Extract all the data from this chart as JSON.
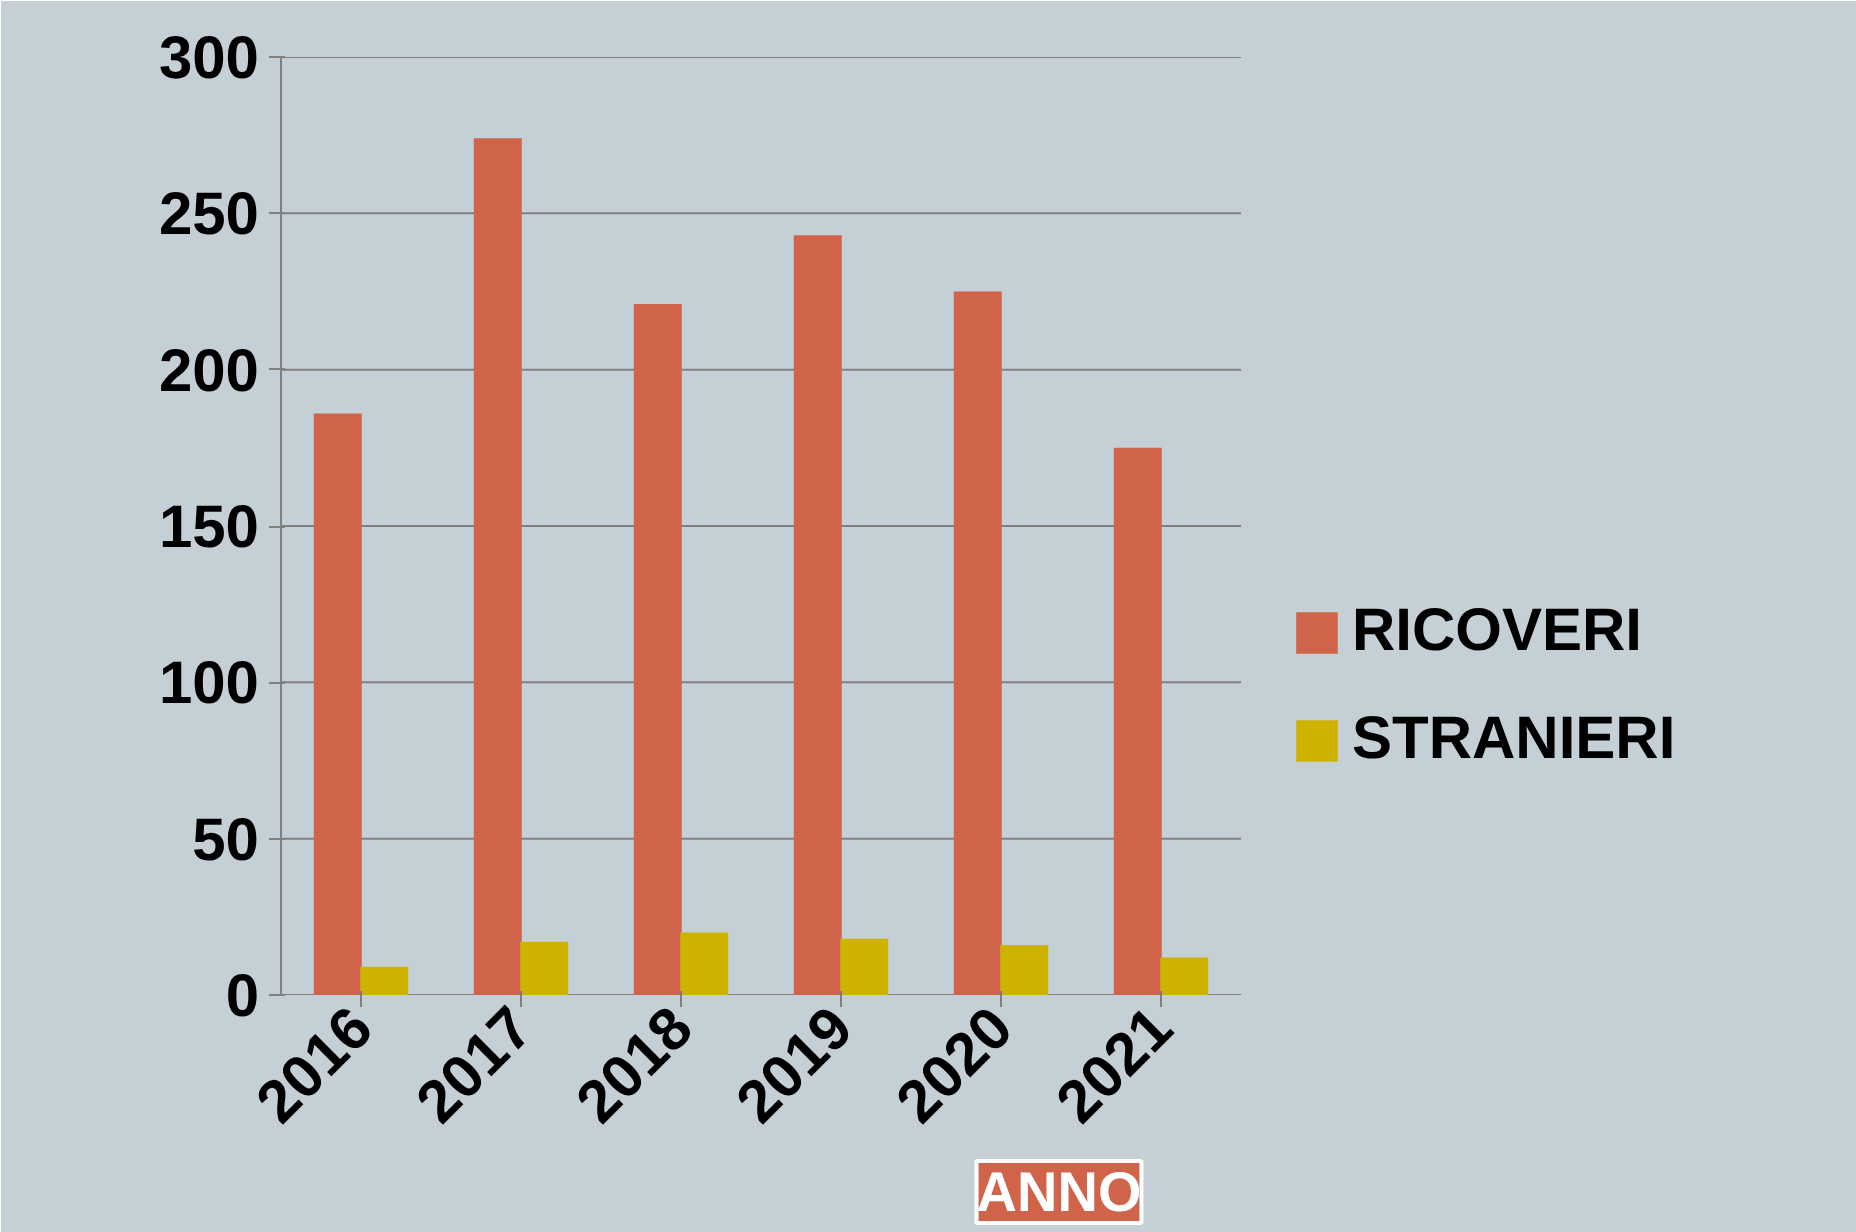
{
  "chart_data": {
    "type": "bar",
    "categories": [
      "2016",
      "2017",
      "2018",
      "2019",
      "2020",
      "2021"
    ],
    "series": [
      {
        "name": "RICOVERI",
        "color": "#d0644a",
        "values": [
          186,
          274,
          221,
          243,
          225,
          175
        ]
      },
      {
        "name": "STRANIERI",
        "color": "#cdb300",
        "values": [
          9,
          17,
          20,
          18,
          16,
          12
        ]
      }
    ],
    "ylim": [
      0,
      300
    ],
    "yticks": [
      0,
      50,
      100,
      150,
      200,
      250,
      300
    ],
    "grid": "y",
    "legend": "right",
    "annotations": [
      "ANNO"
    ]
  }
}
